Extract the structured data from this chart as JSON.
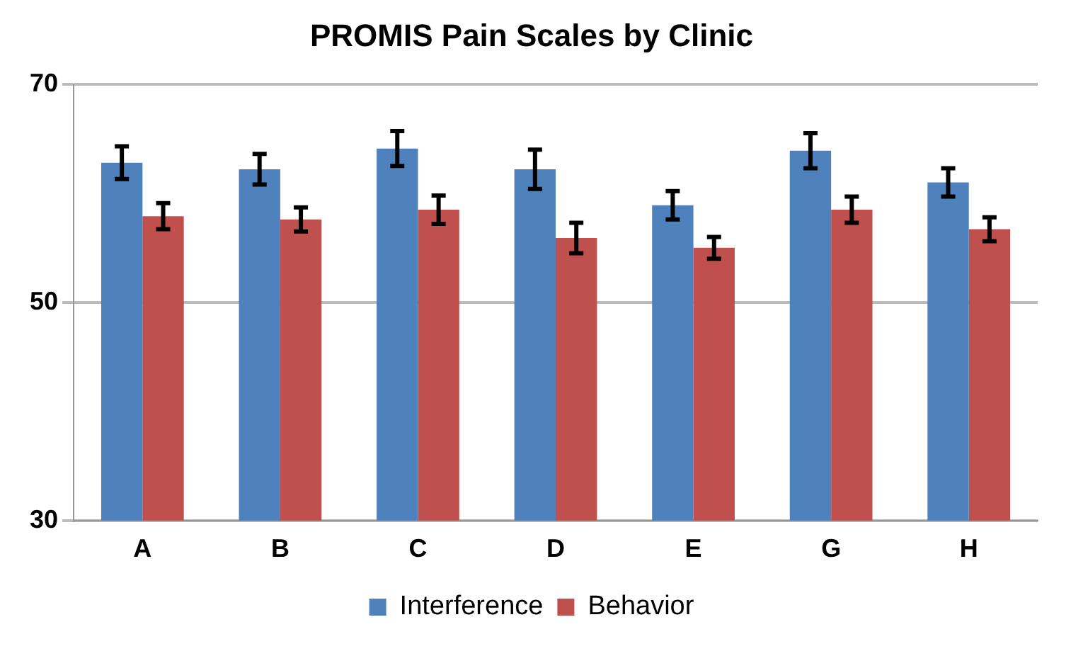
{
  "chart_data": {
    "type": "bar",
    "title": "PROMIS Pain Scales by Clinic",
    "categories": [
      "A",
      "B",
      "C",
      "D",
      "E",
      "G",
      "H"
    ],
    "series": [
      {
        "name": "Interference",
        "color": "#4f81bd",
        "values": [
          62.8,
          62.2,
          64.1,
          62.2,
          58.9,
          63.9,
          61.0
        ],
        "errors": [
          1.5,
          1.4,
          1.6,
          1.8,
          1.3,
          1.6,
          1.3
        ]
      },
      {
        "name": "Behavior",
        "color": "#c0504d",
        "values": [
          57.9,
          57.6,
          58.5,
          55.9,
          55.0,
          58.5,
          56.7
        ],
        "errors": [
          1.2,
          1.1,
          1.3,
          1.4,
          1.0,
          1.2,
          1.1
        ]
      }
    ],
    "ylim": [
      30,
      70
    ],
    "yticks": [
      30,
      50,
      70
    ],
    "grid": "y",
    "legend": "bottom"
  }
}
